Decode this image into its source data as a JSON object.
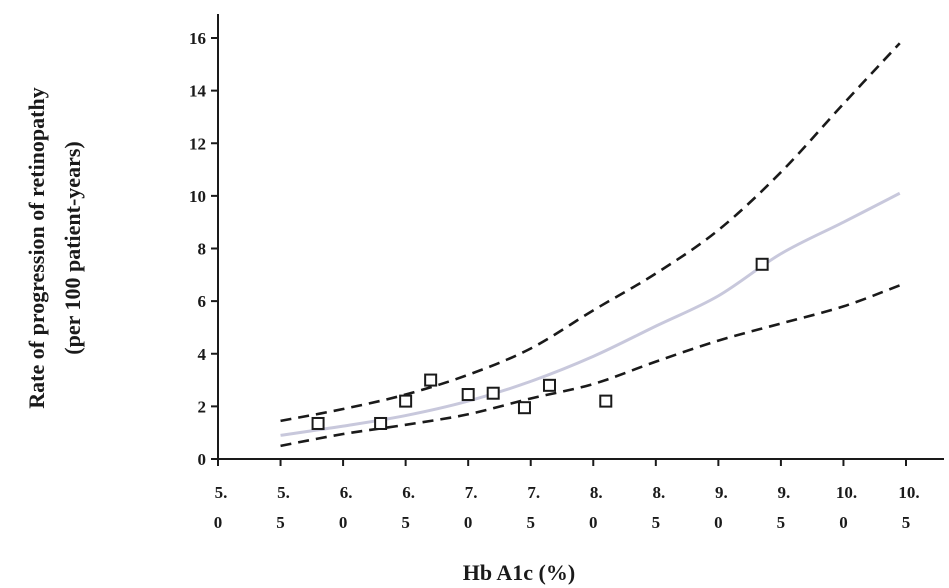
{
  "chart_data": {
    "type": "line",
    "xlabel": "Hb A1c (%)",
    "ylabel_line1": "Rate of progression of retinopathy",
    "ylabel_line2": "(per 100 patient-years)",
    "xlim": [
      5.0,
      10.5
    ],
    "ylim": [
      0,
      16
    ],
    "x_ticks": [
      {
        "value": 5.0,
        "top": "5.",
        "bottom": "0"
      },
      {
        "value": 5.5,
        "top": "5.",
        "bottom": "5"
      },
      {
        "value": 6.0,
        "top": "6.",
        "bottom": "0"
      },
      {
        "value": 6.5,
        "top": "6.",
        "bottom": "5"
      },
      {
        "value": 7.0,
        "top": "7.",
        "bottom": "0"
      },
      {
        "value": 7.5,
        "top": "7.",
        "bottom": "5"
      },
      {
        "value": 8.0,
        "top": "8.",
        "bottom": "0"
      },
      {
        "value": 8.5,
        "top": "8.",
        "bottom": "5"
      },
      {
        "value": 9.0,
        "top": "9.",
        "bottom": "0"
      },
      {
        "value": 9.5,
        "top": "9.",
        "bottom": "5"
      },
      {
        "value": 10.0,
        "top": "10.",
        "bottom": "0"
      },
      {
        "value": 10.5,
        "top": "10.",
        "bottom": "5"
      }
    ],
    "y_ticks": [
      0,
      2,
      4,
      6,
      8,
      10,
      12,
      14,
      16
    ],
    "grid": false,
    "series": [
      {
        "style": "solid",
        "color": "#c8c8dc",
        "x": [
          5.5,
          6.0,
          6.5,
          7.0,
          7.5,
          8.0,
          8.5,
          9.0,
          9.5,
          10.0,
          10.45
        ],
        "y": [
          0.9,
          1.25,
          1.65,
          2.2,
          2.95,
          3.9,
          5.05,
          6.2,
          7.8,
          9.0,
          10.1
        ]
      },
      {
        "style": "dashed",
        "color": "#1a1a1a",
        "x": [
          5.5,
          6.0,
          6.5,
          7.0,
          7.5,
          8.0,
          8.5,
          9.0,
          9.5,
          10.0,
          10.45
        ],
        "y": [
          1.45,
          1.9,
          2.45,
          3.2,
          4.2,
          5.65,
          7.05,
          8.7,
          10.9,
          13.5,
          15.8
        ]
      },
      {
        "style": "dashed",
        "color": "#1a1a1a",
        "x": [
          5.5,
          6.0,
          6.5,
          7.0,
          7.5,
          8.0,
          8.5,
          9.0,
          9.5,
          10.0,
          10.45
        ],
        "y": [
          0.5,
          0.95,
          1.3,
          1.7,
          2.3,
          2.85,
          3.7,
          4.5,
          5.15,
          5.8,
          6.6
        ]
      }
    ],
    "points": {
      "marker": "open-square",
      "x": [
        5.8,
        6.3,
        6.5,
        6.7,
        7.0,
        7.2,
        7.45,
        7.65,
        8.1,
        9.35
      ],
      "y": [
        1.35,
        1.35,
        2.2,
        3.0,
        2.45,
        2.5,
        1.95,
        2.8,
        2.2,
        7.4
      ]
    }
  }
}
